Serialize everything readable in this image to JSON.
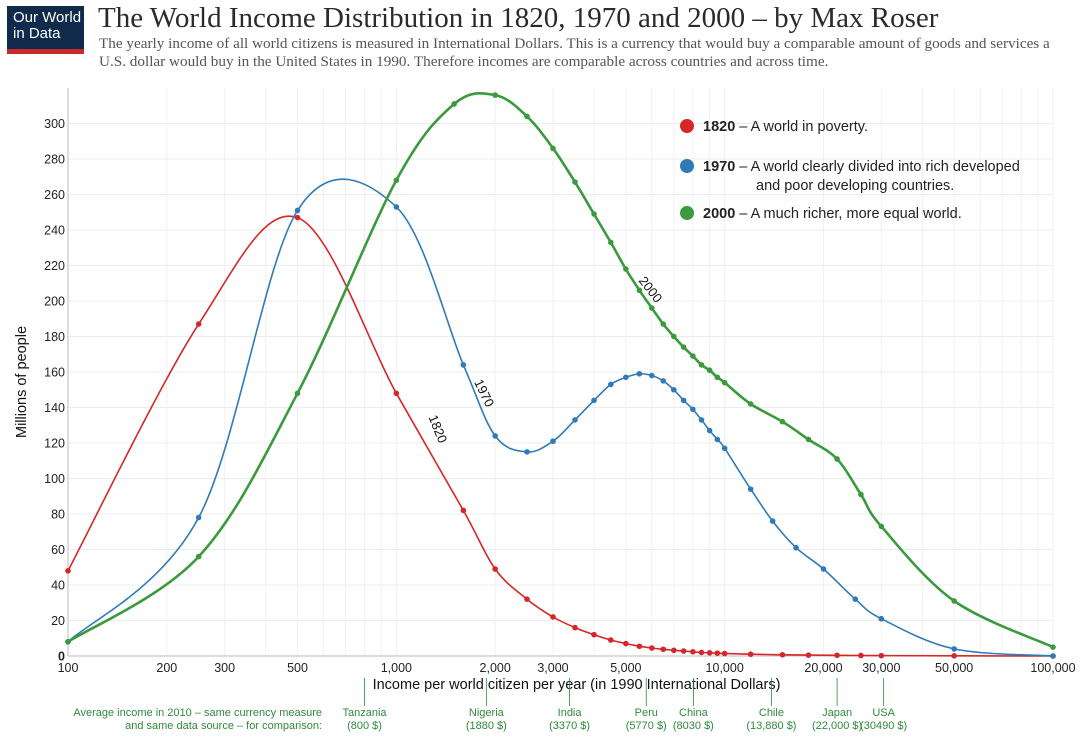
{
  "logo": {
    "line1": "Our World",
    "line2": "in Data"
  },
  "title": "The World Income Distribution in 1820, 1970 and 2000 – by Max Roser",
  "subtitle": "The yearly income of all world citizens is measured in International Dollars. This is a currency that would buy a comparable amount of goods and services a U.S. dollar would buy in the United States in 1990. Therefore incomes are comparable across countries and across time.",
  "colors": {
    "1820": "#d7262a",
    "1970": "#2f7ab9",
    "2000": "#3a9a3d",
    "reference": "#2f8a3c"
  },
  "chart_data": {
    "type": "line",
    "xscale": "log",
    "xlim": [
      100,
      100000
    ],
    "ylim": [
      0,
      320
    ],
    "grid": true,
    "xlabel": "Income per world citizen per year (in 1990 International Dollars)",
    "ylabel": "Millions of people",
    "x_ticks": [
      {
        "value": 100,
        "label": "100"
      },
      {
        "value": 200,
        "label": "200"
      },
      {
        "value": 300,
        "label": "300"
      },
      {
        "value": 500,
        "label": "500"
      },
      {
        "value": 1000,
        "label": "1,000"
      },
      {
        "value": 2000,
        "label": "2,000"
      },
      {
        "value": 3000,
        "label": "3,000"
      },
      {
        "value": 5000,
        "label": "5,000"
      },
      {
        "value": 10000,
        "label": "10,000"
      },
      {
        "value": 20000,
        "label": "20,000"
      },
      {
        "value": 30000,
        "label": "30,000"
      },
      {
        "value": 50000,
        "label": "50,000"
      },
      {
        "value": 100000,
        "label": "100,000"
      }
    ],
    "y_ticks": [
      0,
      20,
      40,
      60,
      80,
      100,
      120,
      140,
      160,
      180,
      200,
      220,
      240,
      260,
      280,
      300
    ],
    "legend_position": "top-right",
    "series": [
      {
        "name": "1820",
        "legend": "– A world in poverty.",
        "curve_label": "1820",
        "points": [
          [
            100,
            48
          ],
          [
            250,
            187
          ],
          [
            500,
            247
          ],
          [
            1000,
            148
          ],
          [
            1600,
            82
          ],
          [
            2000,
            49
          ],
          [
            2500,
            32
          ],
          [
            3000,
            22
          ],
          [
            3500,
            16
          ],
          [
            4000,
            12
          ],
          [
            4500,
            9
          ],
          [
            5000,
            7
          ],
          [
            5500,
            5.5
          ],
          [
            6000,
            4.5
          ],
          [
            6500,
            3.8
          ],
          [
            7000,
            3.2
          ],
          [
            7500,
            2.8
          ],
          [
            8000,
            2.4
          ],
          [
            8500,
            2
          ],
          [
            9000,
            1.8
          ],
          [
            9500,
            1.6
          ],
          [
            10000,
            1.4
          ],
          [
            12000,
            1
          ],
          [
            15000,
            0.7
          ],
          [
            18000,
            0.5
          ],
          [
            22000,
            0.4
          ],
          [
            26000,
            0.3
          ],
          [
            30000,
            0.2
          ],
          [
            50000,
            0.1
          ],
          [
            100000,
            0
          ]
        ]
      },
      {
        "name": "1970",
        "legend": "– A world clearly divided into rich developed",
        "legend_line2": "and poor developing countries.",
        "curve_label": "1970",
        "points": [
          [
            100,
            8
          ],
          [
            250,
            78
          ],
          [
            500,
            251
          ],
          [
            1000,
            253
          ],
          [
            1600,
            164
          ],
          [
            2000,
            124
          ],
          [
            2500,
            115
          ],
          [
            3000,
            121
          ],
          [
            3500,
            133
          ],
          [
            4000,
            144
          ],
          [
            4500,
            153
          ],
          [
            5000,
            157
          ],
          [
            5500,
            159
          ],
          [
            6000,
            158
          ],
          [
            6500,
            155
          ],
          [
            7000,
            150
          ],
          [
            7500,
            144
          ],
          [
            8000,
            139
          ],
          [
            8500,
            133
          ],
          [
            9000,
            127
          ],
          [
            9500,
            122
          ],
          [
            10000,
            117
          ],
          [
            12000,
            94
          ],
          [
            14000,
            76
          ],
          [
            16500,
            61
          ],
          [
            20000,
            49
          ],
          [
            25000,
            32
          ],
          [
            30000,
            21
          ],
          [
            50000,
            4
          ],
          [
            100000,
            0
          ]
        ]
      },
      {
        "name": "2000",
        "legend": "– A much richer, more equal world.",
        "curve_label": "2000",
        "points": [
          [
            100,
            8
          ],
          [
            250,
            56
          ],
          [
            500,
            148
          ],
          [
            1000,
            268
          ],
          [
            1500,
            311
          ],
          [
            2000,
            316
          ],
          [
            2500,
            304
          ],
          [
            3000,
            286
          ],
          [
            3500,
            267
          ],
          [
            4000,
            249
          ],
          [
            4500,
            233
          ],
          [
            5000,
            218
          ],
          [
            5500,
            206
          ],
          [
            6000,
            196
          ],
          [
            6500,
            187
          ],
          [
            7000,
            180
          ],
          [
            7500,
            174
          ],
          [
            8000,
            169
          ],
          [
            8500,
            164
          ],
          [
            9000,
            161
          ],
          [
            9500,
            157
          ],
          [
            10000,
            154
          ],
          [
            12000,
            142
          ],
          [
            15000,
            132
          ],
          [
            18000,
            122
          ],
          [
            22000,
            111
          ],
          [
            26000,
            91
          ],
          [
            30000,
            73
          ],
          [
            50000,
            31
          ],
          [
            100000,
            5
          ]
        ]
      }
    ],
    "reference_title_line1": "Average income in 2010 – same currency measure",
    "reference_title_line2": "and same data source – for comparison:",
    "references": [
      {
        "value": 800,
        "name": "Tanzania",
        "income": "(800 $)"
      },
      {
        "value": 1880,
        "name": "Nigeria",
        "income": "(1880 $)"
      },
      {
        "value": 3370,
        "name": "India",
        "income": "(3370 $)"
      },
      {
        "value": 5770,
        "name": "Peru",
        "income": "(5770 $)"
      },
      {
        "value": 8030,
        "name": "China",
        "income": "(8030 $)"
      },
      {
        "value": 13880,
        "name": "Chile",
        "income": "(13,880 $)"
      },
      {
        "value": 22000,
        "name": "Japan",
        "income": "(22,000 $)"
      },
      {
        "value": 30490,
        "name": "USA",
        "income": "(30490 $)"
      }
    ]
  }
}
